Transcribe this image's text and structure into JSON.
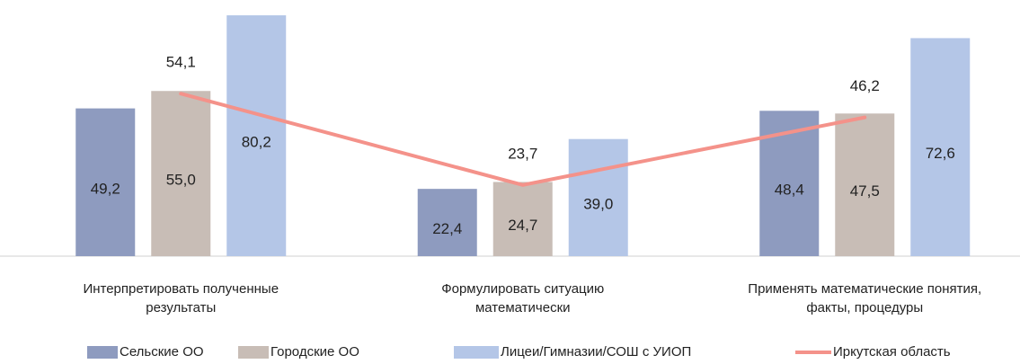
{
  "chart_data": {
    "type": "bar",
    "legend": "bottom",
    "categories": [
      [
        "Интерпретировать полученные",
        "результаты"
      ],
      [
        "Формулировать ситуацию",
        "математически"
      ],
      [
        "Применять математические понятия,",
        "факты, процедуры"
      ]
    ],
    "ylim": [
      0,
      85
    ],
    "series": [
      {
        "name": "Сельские ОО",
        "color": "#8e9bbf",
        "values": [
          49.2,
          22.4,
          48.4
        ],
        "value_labels": [
          "49,2",
          "22,4",
          "48,4"
        ]
      },
      {
        "name": "Городские ОО",
        "color": "#c8bdb6",
        "values": [
          55.0,
          24.7,
          47.5
        ],
        "value_labels": [
          "55,0",
          "24,7",
          "47,5"
        ]
      },
      {
        "name": "Лицеи/Гимназии/СОШ с УИОП",
        "color": "#b4c6e7",
        "values": [
          80.2,
          39.0,
          72.6
        ],
        "value_labels": [
          "80,2",
          "39,0",
          "72,6"
        ]
      },
      {
        "name": "Иркутская область",
        "type": "line",
        "color": "#f4928a",
        "values": [
          54.1,
          23.7,
          46.2
        ],
        "value_labels": [
          "54,1",
          "23,7",
          "46,2"
        ]
      }
    ]
  }
}
